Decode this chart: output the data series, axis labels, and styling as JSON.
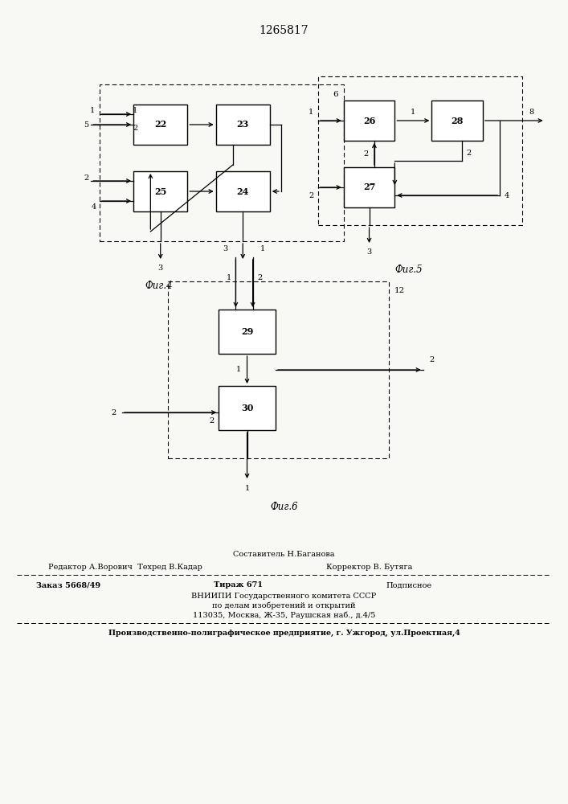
{
  "title": "1265817",
  "bg_color": "#f8f8f5",
  "fig4_label": "Фиг.4",
  "fig5_label": "Фиг.5",
  "fig6_label": "Фиг.6"
}
